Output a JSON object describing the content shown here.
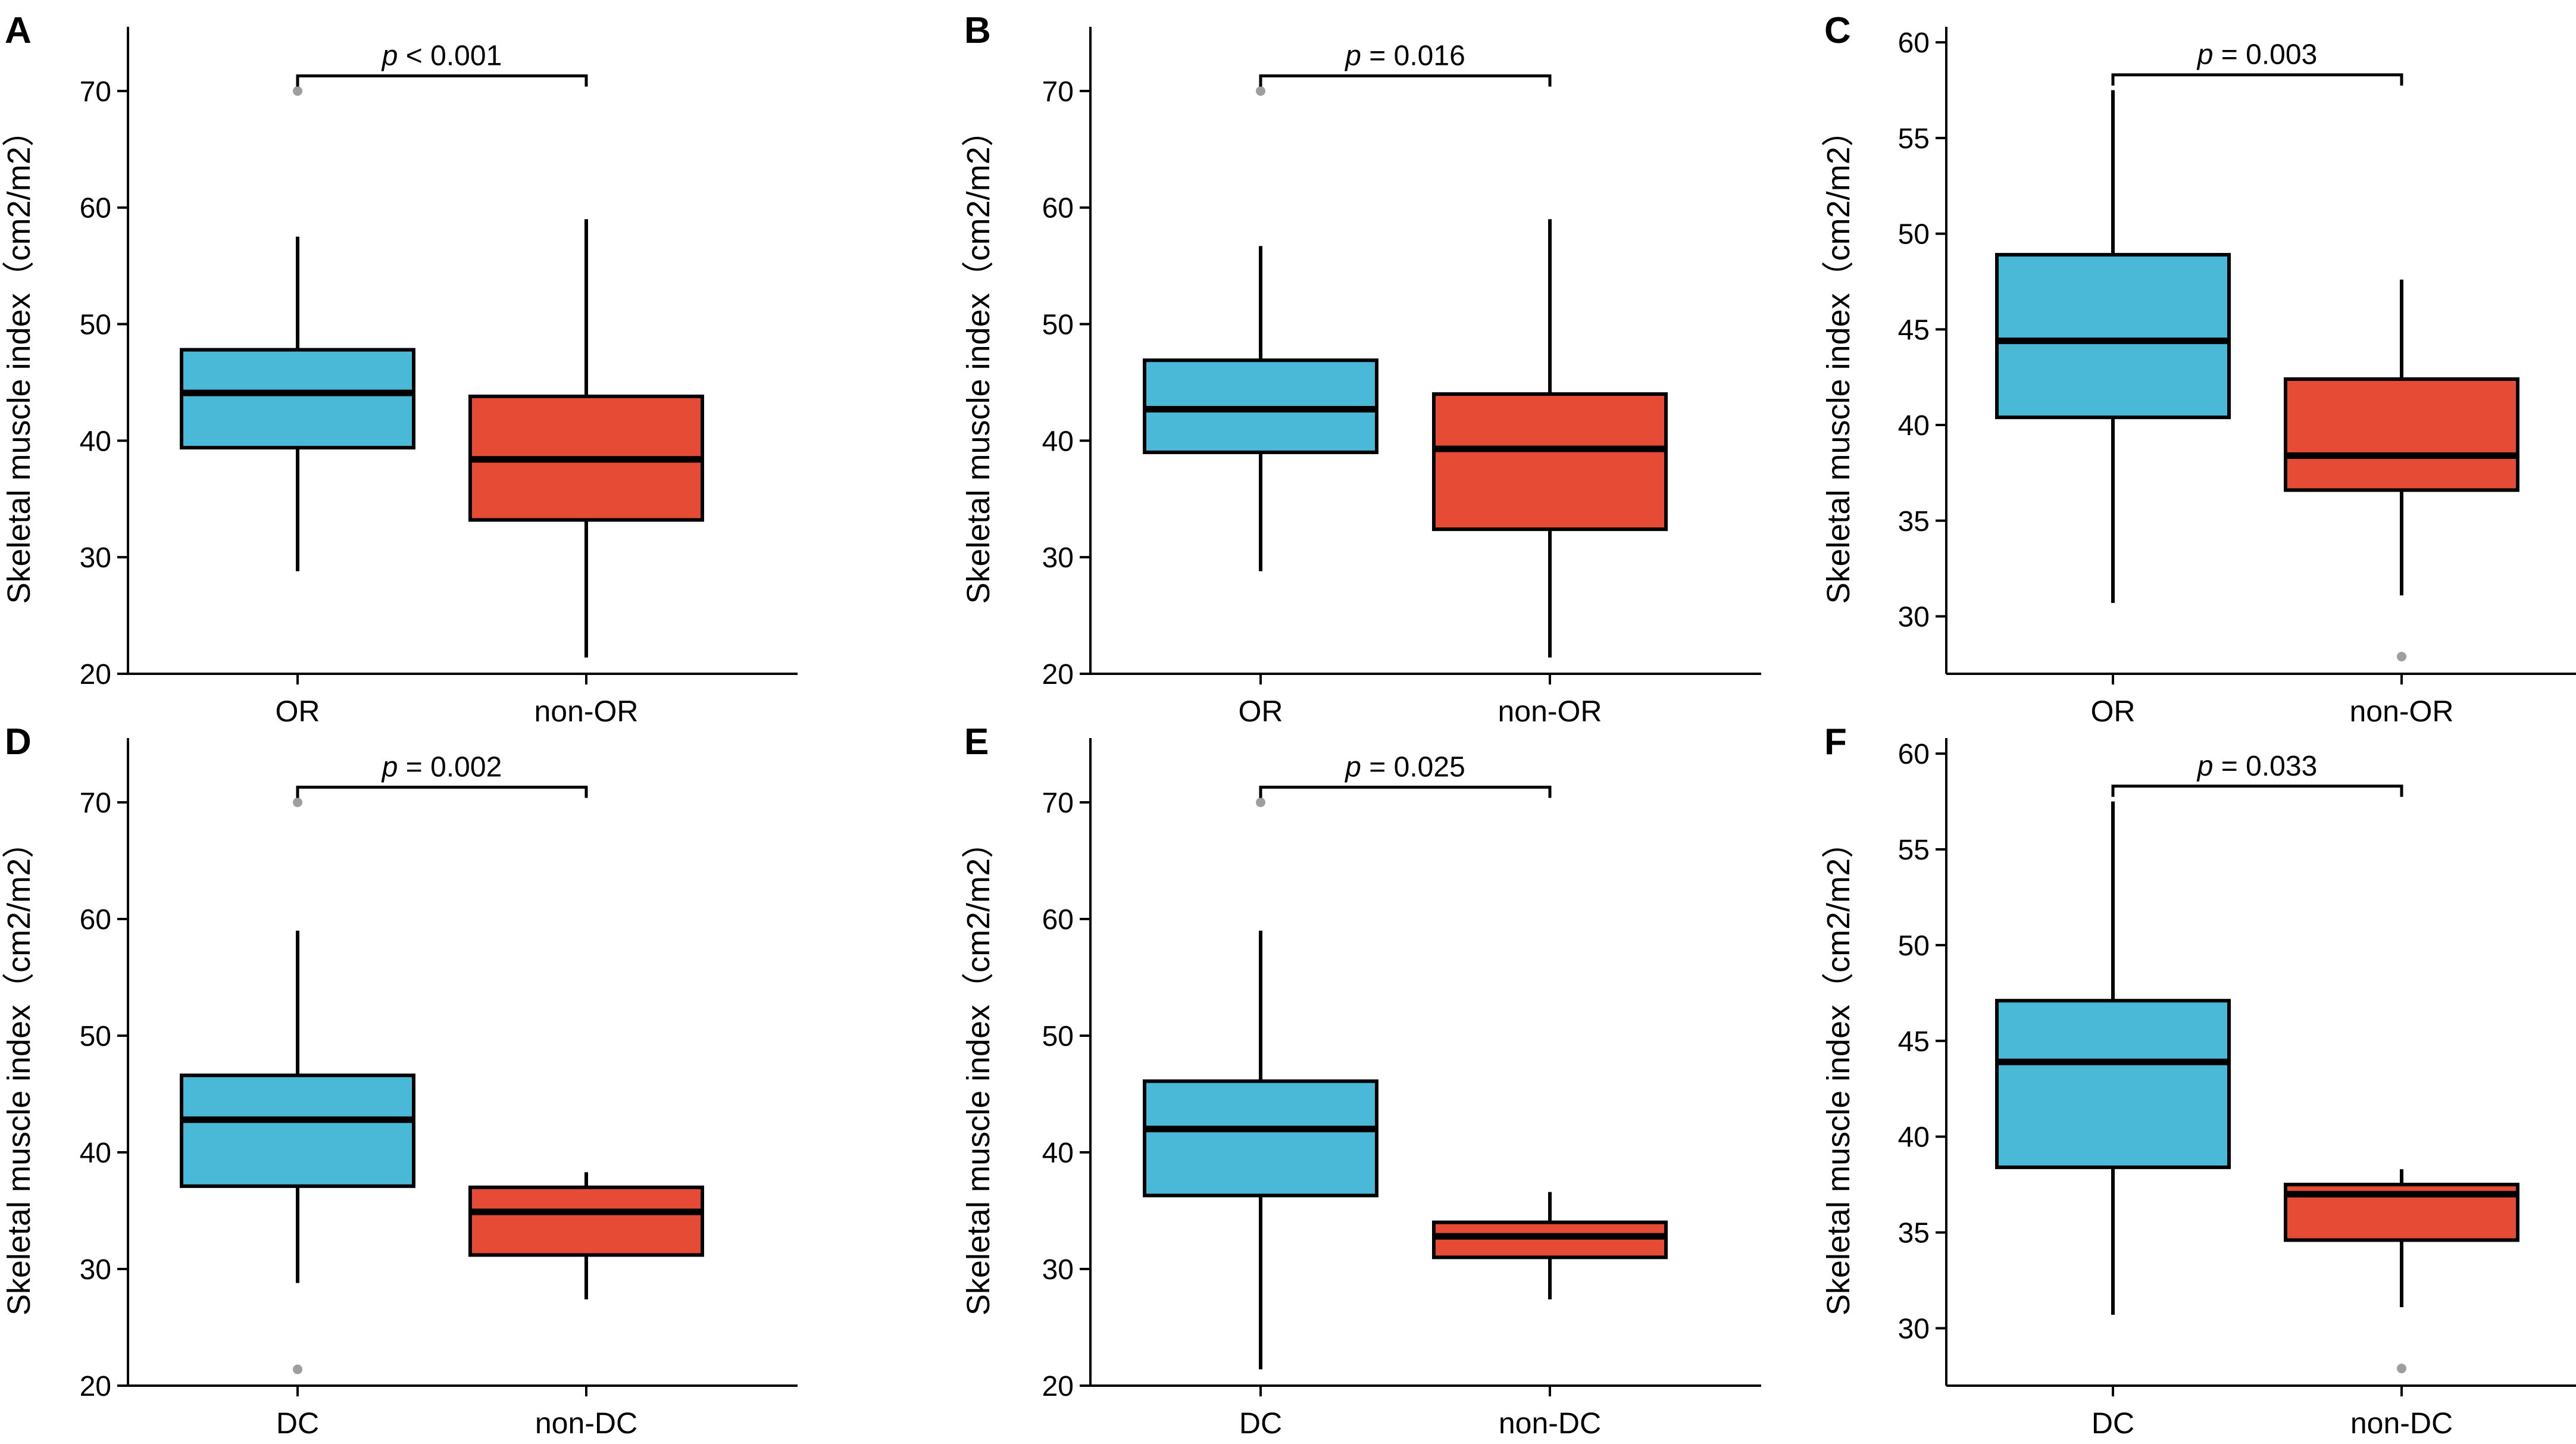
{
  "figure": {
    "colors": {
      "group1": "#4ab9d8",
      "group2": "#e64b35",
      "outlier": "#9e9e9e",
      "line": "#000000"
    }
  },
  "chart_data": [
    {
      "panel": "A",
      "type": "box",
      "ylabel": "Skeletal muscle index（cm2/m2）",
      "ylim": [
        20,
        75
      ],
      "yticks": [
        20,
        30,
        40,
        50,
        60,
        70
      ],
      "categories": [
        "OR",
        "non-OR"
      ],
      "boxes": [
        {
          "name": "OR",
          "color": "group1",
          "q1": 39.4,
          "median": 44.1,
          "q3": 47.8,
          "whisker_low": 28.8,
          "whisker_high": 57.5,
          "outliers": [
            70.0
          ]
        },
        {
          "name": "non-OR",
          "color": "group2",
          "q1": 33.2,
          "median": 38.4,
          "q3": 43.8,
          "whisker_low": 21.4,
          "whisker_high": 59.0,
          "outliers": []
        }
      ],
      "p_prefix": "p",
      "p_rest": " < 0.001",
      "bracket_y": 71.3
    },
    {
      "panel": "B",
      "type": "box",
      "ylabel": "Skeletal muscle index（cm2/m2）",
      "ylim": [
        20,
        75
      ],
      "yticks": [
        20,
        30,
        40,
        50,
        60,
        70
      ],
      "categories": [
        "OR",
        "non-OR"
      ],
      "boxes": [
        {
          "name": "OR",
          "color": "group1",
          "q1": 39.0,
          "median": 42.7,
          "q3": 46.9,
          "whisker_low": 28.8,
          "whisker_high": 56.7,
          "outliers": [
            70.0
          ]
        },
        {
          "name": "non-OR",
          "color": "group2",
          "q1": 32.4,
          "median": 39.3,
          "q3": 44.0,
          "whisker_low": 21.4,
          "whisker_high": 59.0,
          "outliers": []
        }
      ],
      "p_prefix": "p",
      "p_rest": " = 0.016",
      "bracket_y": 71.3
    },
    {
      "panel": "C",
      "type": "box",
      "ylabel": "Skeletal muscle index（cm2/m2）",
      "ylim": [
        27.0,
        60.5
      ],
      "yticks": [
        30,
        35,
        40,
        45,
        50,
        55,
        60
      ],
      "categories": [
        "OR",
        "non-OR"
      ],
      "boxes": [
        {
          "name": "OR",
          "color": "group1",
          "q1": 40.4,
          "median": 44.4,
          "q3": 48.9,
          "whisker_low": 30.7,
          "whisker_high": 57.5,
          "outliers": []
        },
        {
          "name": "non-OR",
          "color": "group2",
          "q1": 36.6,
          "median": 38.4,
          "q3": 42.4,
          "whisker_low": 31.1,
          "whisker_high": 47.6,
          "outliers": [
            27.9
          ]
        }
      ],
      "p_prefix": "p",
      "p_rest": " = 0.003",
      "bracket_y": 58.3
    },
    {
      "panel": "D",
      "type": "box",
      "ylabel": "Skeletal muscle index（cm2/m2）",
      "ylim": [
        20,
        75
      ],
      "yticks": [
        20,
        30,
        40,
        50,
        60,
        70
      ],
      "categories": [
        "DC",
        "non-DC"
      ],
      "boxes": [
        {
          "name": "DC",
          "color": "group1",
          "q1": 37.1,
          "median": 42.8,
          "q3": 46.6,
          "whisker_low": 28.8,
          "whisker_high": 59.0,
          "outliers": [
            70.0,
            21.4
          ]
        },
        {
          "name": "non-DC",
          "color": "group2",
          "q1": 31.2,
          "median": 34.9,
          "q3": 37.0,
          "whisker_low": 27.4,
          "whisker_high": 38.3,
          "outliers": []
        }
      ],
      "p_prefix": "p",
      "p_rest": " = 0.002",
      "bracket_y": 71.3
    },
    {
      "panel": "E",
      "type": "box",
      "ylabel": "Skeletal muscle index（cm2/m2）",
      "ylim": [
        20,
        75
      ],
      "yticks": [
        20,
        30,
        40,
        50,
        60,
        70
      ],
      "categories": [
        "DC",
        "non-DC"
      ],
      "boxes": [
        {
          "name": "DC",
          "color": "group1",
          "q1": 36.3,
          "median": 42.0,
          "q3": 46.1,
          "whisker_low": 21.4,
          "whisker_high": 59.0,
          "outliers": [
            70.0
          ]
        },
        {
          "name": "non-DC",
          "color": "group2",
          "q1": 31.0,
          "median": 32.8,
          "q3": 34.0,
          "whisker_low": 27.4,
          "whisker_high": 36.6,
          "outliers": []
        }
      ],
      "p_prefix": "p",
      "p_rest": " = 0.025",
      "bracket_y": 71.3
    },
    {
      "panel": "F",
      "type": "box",
      "ylabel": "Skeletal muscle index（cm2/m2）",
      "ylim": [
        27.0,
        60.5
      ],
      "yticks": [
        30,
        35,
        40,
        45,
        50,
        55,
        60
      ],
      "categories": [
        "DC",
        "non-DC"
      ],
      "boxes": [
        {
          "name": "DC",
          "color": "group1",
          "q1": 38.4,
          "median": 43.9,
          "q3": 47.1,
          "whisker_low": 30.7,
          "whisker_high": 57.5,
          "outliers": []
        },
        {
          "name": "non-DC",
          "color": "group2",
          "q1": 34.6,
          "median": 37.0,
          "q3": 37.5,
          "whisker_low": 31.1,
          "whisker_high": 38.3,
          "outliers": [
            27.9
          ]
        }
      ],
      "p_prefix": "p",
      "p_rest": " = 0.033",
      "bracket_y": 58.3
    }
  ]
}
